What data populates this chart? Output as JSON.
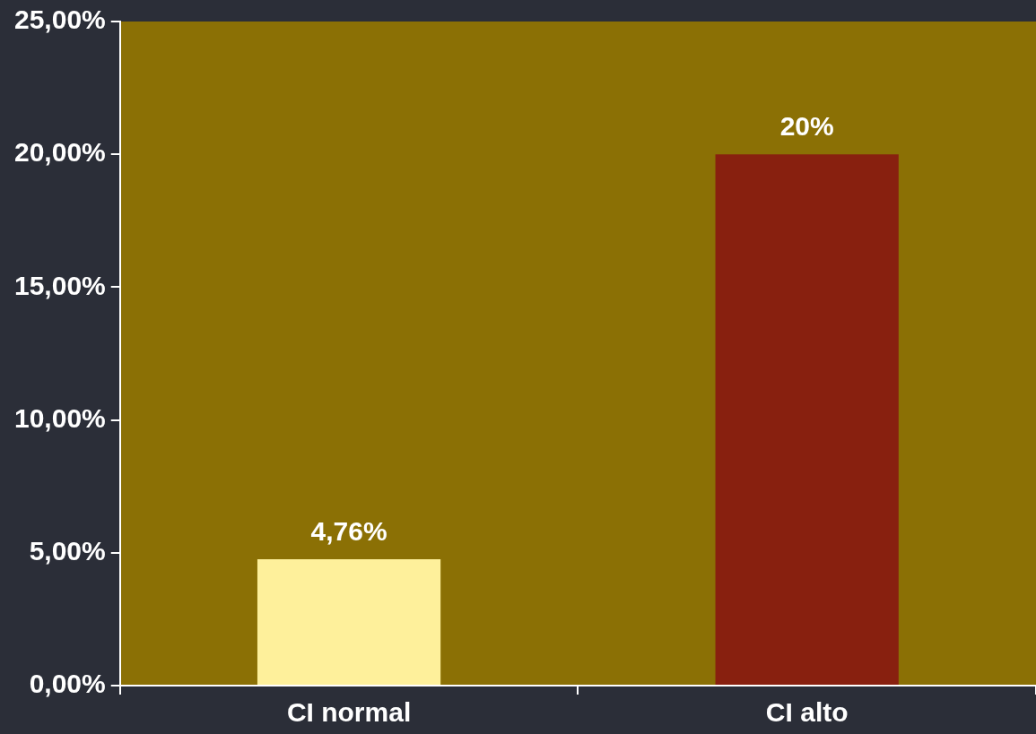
{
  "chart_data": {
    "type": "bar",
    "categories": [
      "CI normal",
      "CI alto"
    ],
    "values": [
      4.76,
      20
    ],
    "colors": [
      "#fef09b",
      "#88200f"
    ],
    "value_labels": [
      "4,76%",
      "20%"
    ],
    "ylim": [
      0,
      25
    ],
    "yticks": [
      {
        "value": 0,
        "label": "0,00%"
      },
      {
        "value": 5,
        "label": "5,00%"
      },
      {
        "value": 10,
        "label": "10,00%"
      },
      {
        "value": 15,
        "label": "15,00%"
      },
      {
        "value": 20,
        "label": "20,00%"
      },
      {
        "value": 25,
        "label": "25,00%"
      }
    ],
    "legend": false
  }
}
